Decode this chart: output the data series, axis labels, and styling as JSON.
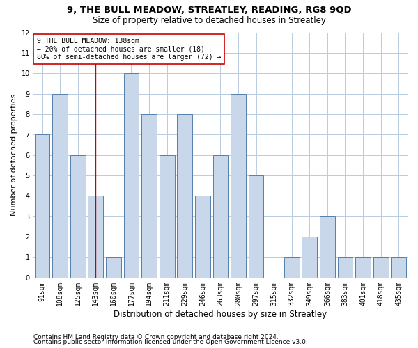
{
  "title1": "9, THE BULL MEADOW, STREATLEY, READING, RG8 9QD",
  "title2": "Size of property relative to detached houses in Streatley",
  "xlabel": "Distribution of detached houses by size in Streatley",
  "ylabel": "Number of detached properties",
  "categories": [
    "91sqm",
    "108sqm",
    "125sqm",
    "143sqm",
    "160sqm",
    "177sqm",
    "194sqm",
    "211sqm",
    "229sqm",
    "246sqm",
    "263sqm",
    "280sqm",
    "297sqm",
    "315sqm",
    "332sqm",
    "349sqm",
    "366sqm",
    "383sqm",
    "401sqm",
    "418sqm",
    "435sqm"
  ],
  "values": [
    7,
    9,
    6,
    4,
    1,
    10,
    8,
    6,
    8,
    4,
    6,
    9,
    5,
    0,
    1,
    2,
    3,
    1,
    1,
    1,
    1
  ],
  "bar_color": "#c8d8ea",
  "bar_edge_color": "#5580aa",
  "vline_index": 3,
  "vline_color": "#cc0000",
  "annotation_text": "9 THE BULL MEADOW: 138sqm\n← 20% of detached houses are smaller (18)\n80% of semi-detached houses are larger (72) →",
  "annotation_box_color": "#ffffff",
  "annotation_box_edge": "#cc0000",
  "ylim": [
    0,
    12
  ],
  "yticks": [
    0,
    1,
    2,
    3,
    4,
    5,
    6,
    7,
    8,
    9,
    10,
    11,
    12
  ],
  "footer1": "Contains HM Land Registry data © Crown copyright and database right 2024.",
  "footer2": "Contains public sector information licensed under the Open Government Licence v3.0.",
  "bg_color": "#ffffff",
  "grid_color": "#b8cce0",
  "title1_fontsize": 9.5,
  "title2_fontsize": 8.5,
  "ylabel_fontsize": 8,
  "xlabel_fontsize": 8.5,
  "tick_fontsize": 7,
  "annotation_fontsize": 7,
  "footer_fontsize": 6.5
}
